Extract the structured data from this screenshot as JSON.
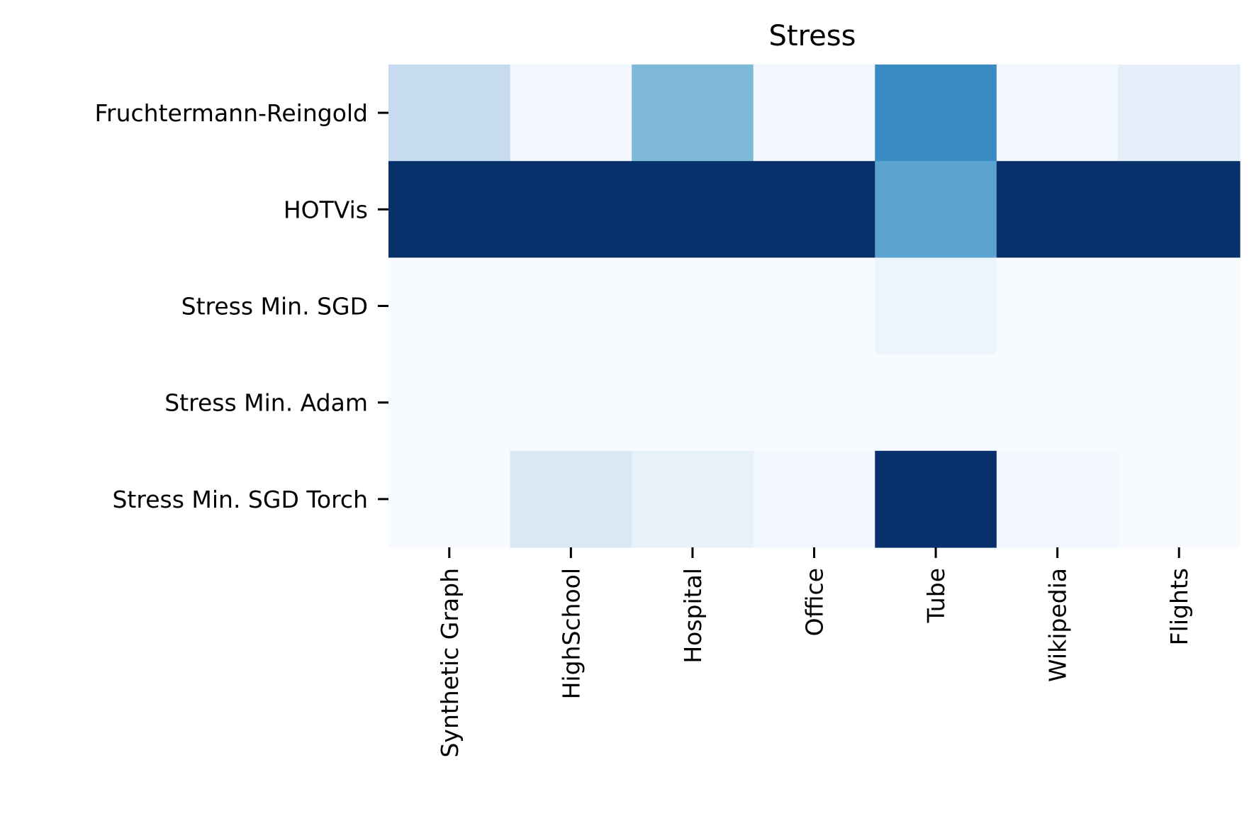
{
  "chart_data": {
    "type": "heatmap",
    "title": "Stress",
    "xlabel": "",
    "ylabel": "",
    "x_categories": [
      "Synthetic Graph",
      "HighSchool",
      "Hospital",
      "Office",
      "Tube",
      "Wikipedia",
      "Flights"
    ],
    "y_categories": [
      "Fruchtermann-Reingold",
      "HOTVis",
      "Stress Min. SGD",
      "Stress Min. Adam",
      "Stress Min. SGD Torch"
    ],
    "values": [
      [
        0.25,
        0.03,
        0.45,
        0.03,
        0.65,
        0.03,
        0.1
      ],
      [
        1.0,
        1.0,
        1.0,
        1.0,
        0.55,
        1.0,
        1.0
      ],
      [
        0.0,
        0.0,
        0.0,
        0.0,
        0.05,
        0.0,
        0.0
      ],
      [
        0.0,
        0.0,
        0.0,
        0.0,
        0.0,
        0.0,
        0.0
      ],
      [
        0.0,
        0.15,
        0.08,
        0.03,
        1.0,
        0.03,
        0.0
      ]
    ],
    "colormap": "Blues",
    "vrange": [
      0,
      1
    ],
    "grid": false,
    "colorbar": false
  }
}
